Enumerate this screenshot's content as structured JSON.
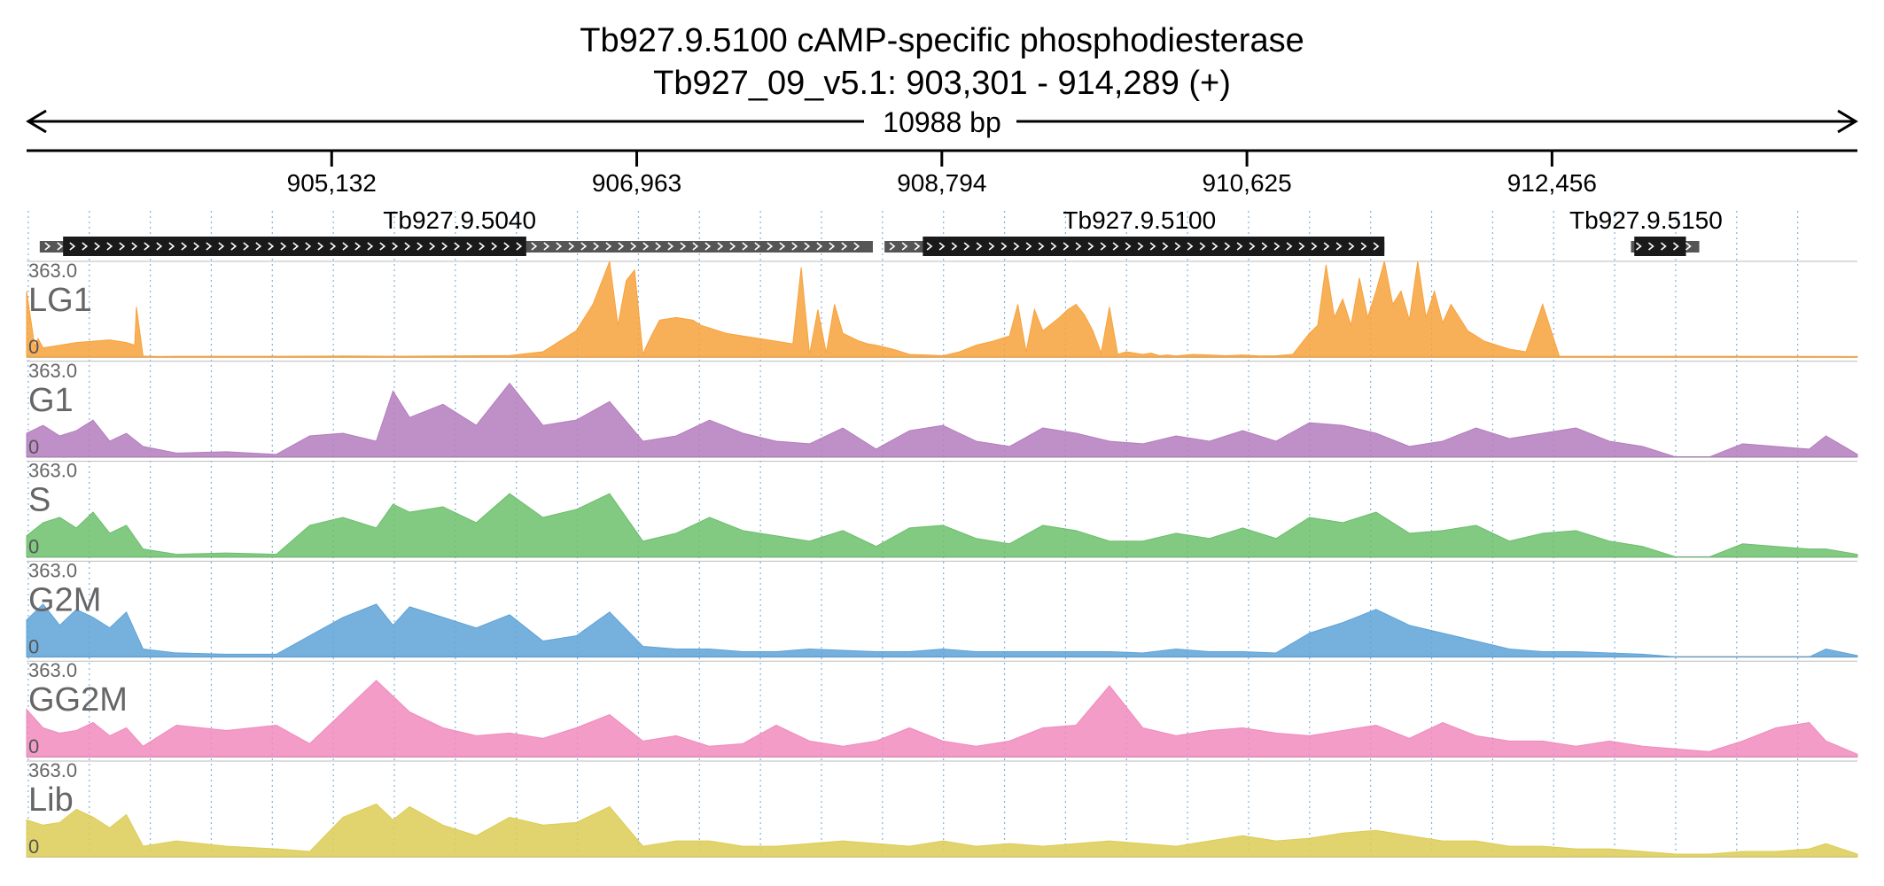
{
  "chart_data": {
    "type": "area",
    "title": "Tb927.9.5100  cAMP-specific phosphodiesterase",
    "subtitle": "Tb927_09_v5.1: 903,301 - 914,289 (+)",
    "span_label": "10988 bp",
    "xlim": [
      903301,
      914289
    ],
    "xticks": [
      905132,
      906963,
      908794,
      910625,
      912456
    ],
    "xtick_labels": [
      "905,132",
      "906,963",
      "908,794",
      "910,625",
      "912,456"
    ],
    "genes": [
      {
        "name": "Tb927.9.5040",
        "start": 903380,
        "end": 906300,
        "cds_start": 903520,
        "cds_end": 906300,
        "label_pos": 905900
      },
      {
        "name": "",
        "start": 906300,
        "end": 908380,
        "cds_start": 0,
        "cds_end": 0,
        "label_pos": 0
      },
      {
        "name": "Tb927.9.5100",
        "start": 908450,
        "end": 911450,
        "cds_start": 908680,
        "cds_end": 911450,
        "label_pos": 909980
      },
      {
        "name": "Tb927.9.5150",
        "start": 912930,
        "end": 913340,
        "cds_start": 912950,
        "cds_end": 913260,
        "label_pos": 913020
      }
    ],
    "ylim": [
      0,
      363.0
    ],
    "ymax_label": "363.0",
    "ymin_label": "0",
    "grid": true,
    "series": [
      {
        "name": "LG1",
        "color": "#f7a23b",
        "x": [
          903301,
          903350,
          903370,
          903400,
          903500,
          903600,
          903700,
          903800,
          903900,
          903950,
          903960,
          904000,
          904020,
          904050,
          904100,
          904200,
          904500,
          904800,
          905200,
          905500,
          905800,
          906000,
          906200,
          906400,
          906500,
          906600,
          906650,
          906700,
          906800,
          906850,
          906900,
          906950,
          907000,
          907020,
          907050,
          907100,
          907200,
          907300,
          907350,
          907400,
          907500,
          907600,
          907700,
          907800,
          907900,
          907950,
          908000,
          908050,
          908100,
          908150,
          908200,
          908300,
          908350,
          908400,
          908500,
          908550,
          908600,
          908700,
          908800,
          908900,
          909000,
          909100,
          909200,
          909250,
          909300,
          909350,
          909400,
          909500,
          909550,
          909600,
          909650,
          909700,
          909750,
          909800,
          909850,
          909900,
          909950,
          910000,
          910050,
          910100,
          910150,
          910200,
          910300,
          910400,
          910500,
          910600,
          910700,
          910800,
          910900,
          911000,
          911050,
          911100,
          911150,
          911200,
          911250,
          911300,
          911350,
          911400,
          911450,
          911500,
          911550,
          911600,
          911650,
          911700,
          911750,
          911800,
          911850,
          911900,
          911950,
          912000,
          912050,
          912100,
          912150,
          912200,
          912300,
          912400,
          912500,
          912600,
          912700,
          912800,
          913000,
          913500,
          914289
        ],
        "y": [
          250,
          40,
          70,
          35,
          45,
          55,
          60,
          65,
          55,
          45,
          190,
          4,
          3,
          3,
          2,
          3,
          3,
          3,
          4,
          3,
          4,
          5,
          6,
          20,
          60,
          100,
          150,
          200,
          380,
          120,
          290,
          330,
          10,
          40,
          80,
          140,
          150,
          140,
          120,
          110,
          90,
          80,
          70,
          60,
          50,
          340,
          10,
          180,
          15,
          200,
          90,
          60,
          50,
          45,
          30,
          20,
          10,
          8,
          5,
          20,
          45,
          60,
          80,
          200,
          20,
          180,
          100,
          150,
          180,
          200,
          160,
          100,
          15,
          190,
          10,
          20,
          15,
          10,
          15,
          5,
          8,
          4,
          10,
          8,
          5,
          8,
          4,
          5,
          10,
          90,
          120,
          350,
          150,
          220,
          120,
          300,
          150,
          250,
          370,
          200,
          250,
          140,
          370,
          150,
          250,
          130,
          200,
          150,
          100,
          80,
          60,
          50,
          40,
          30,
          20,
          200,
          3,
          3,
          3,
          3,
          3,
          3,
          2
        ]
      },
      {
        "name": "G1",
        "color": "#b47cbd",
        "x": [
          903301,
          903400,
          903500,
          903600,
          903700,
          903800,
          903900,
          904000,
          904200,
          904500,
          904800,
          905000,
          905200,
          905400,
          905500,
          905600,
          905800,
          906000,
          906200,
          906400,
          906600,
          906800,
          907000,
          907200,
          907400,
          907600,
          907800,
          908000,
          908200,
          908400,
          908600,
          908800,
          909000,
          909200,
          909400,
          909600,
          909800,
          910000,
          910200,
          910400,
          910600,
          910800,
          911000,
          911200,
          911400,
          911600,
          911800,
          912000,
          912200,
          912400,
          912600,
          912800,
          913000,
          913200,
          913400,
          913600,
          913800,
          914000,
          914100,
          914289
        ],
        "y": [
          90,
          120,
          80,
          100,
          140,
          60,
          90,
          40,
          15,
          20,
          10,
          80,
          90,
          60,
          250,
          150,
          200,
          120,
          280,
          120,
          140,
          210,
          60,
          80,
          140,
          90,
          60,
          50,
          110,
          30,
          100,
          120,
          60,
          40,
          110,
          90,
          60,
          50,
          80,
          60,
          100,
          60,
          130,
          120,
          90,
          40,
          60,
          110,
          70,
          90,
          110,
          60,
          40,
          0,
          0,
          50,
          40,
          30,
          80,
          10
        ]
      },
      {
        "name": "S",
        "color": "#6cbf6c",
        "x": [
          903301,
          903400,
          903500,
          903600,
          903700,
          903800,
          903900,
          904000,
          904200,
          904500,
          904800,
          905000,
          905200,
          905400,
          905500,
          905600,
          905800,
          906000,
          906200,
          906400,
          906600,
          906800,
          907000,
          907200,
          907400,
          907600,
          907800,
          908000,
          908200,
          908400,
          908600,
          908800,
          909000,
          909200,
          909400,
          909600,
          909800,
          910000,
          910200,
          910400,
          910600,
          910800,
          911000,
          911200,
          911400,
          911600,
          911800,
          912000,
          912200,
          912400,
          912600,
          912800,
          913000,
          913200,
          913400,
          913600,
          913800,
          914000,
          914100,
          914289
        ],
        "y": [
          80,
          130,
          150,
          110,
          170,
          90,
          120,
          30,
          10,
          15,
          10,
          120,
          150,
          110,
          200,
          170,
          190,
          130,
          240,
          150,
          180,
          240,
          60,
          90,
          150,
          100,
          80,
          60,
          100,
          40,
          110,
          120,
          70,
          50,
          120,
          100,
          60,
          60,
          90,
          70,
          110,
          70,
          150,
          130,
          170,
          90,
          100,
          120,
          60,
          90,
          100,
          60,
          40,
          0,
          0,
          50,
          40,
          30,
          30,
          10
        ]
      },
      {
        "name": "G2M",
        "color": "#5ea3d8",
        "x": [
          903301,
          903400,
          903500,
          903600,
          903700,
          903800,
          903900,
          904000,
          904200,
          904500,
          904800,
          905000,
          905200,
          905400,
          905500,
          905600,
          905800,
          906000,
          906200,
          906400,
          906600,
          906800,
          907000,
          907200,
          907400,
          907600,
          907800,
          908000,
          908200,
          908400,
          908600,
          908800,
          909000,
          909200,
          909400,
          909600,
          909800,
          910000,
          910200,
          910400,
          910600,
          910800,
          911000,
          911200,
          911400,
          911600,
          911800,
          912000,
          912200,
          912400,
          912600,
          912800,
          913000,
          913200,
          913400,
          913600,
          913800,
          914000,
          914100,
          914289
        ],
        "y": [
          140,
          200,
          120,
          180,
          150,
          110,
          170,
          30,
          15,
          10,
          10,
          80,
          150,
          200,
          120,
          190,
          150,
          110,
          160,
          60,
          80,
          170,
          40,
          30,
          30,
          20,
          20,
          30,
          25,
          20,
          20,
          30,
          20,
          20,
          20,
          20,
          20,
          15,
          30,
          20,
          20,
          15,
          90,
          130,
          180,
          120,
          90,
          60,
          30,
          20,
          20,
          15,
          10,
          0,
          0,
          0,
          0,
          0,
          30,
          5
        ]
      },
      {
        "name": "GG2M",
        "color": "#f08bbd",
        "x": [
          903301,
          903400,
          903500,
          903600,
          903700,
          903800,
          903900,
          904000,
          904200,
          904500,
          904800,
          905000,
          905200,
          905400,
          905500,
          905600,
          905800,
          906000,
          906200,
          906400,
          906600,
          906800,
          907000,
          907200,
          907400,
          907600,
          907800,
          908000,
          908200,
          908400,
          908600,
          908800,
          909000,
          909200,
          909400,
          909600,
          909800,
          910000,
          910200,
          910400,
          910600,
          910800,
          911000,
          911200,
          911400,
          911600,
          911800,
          912000,
          912200,
          912400,
          912600,
          912800,
          913000,
          913200,
          913400,
          913600,
          913800,
          914000,
          914100,
          914289
        ],
        "y": [
          180,
          110,
          90,
          100,
          130,
          80,
          110,
          40,
          120,
          100,
          120,
          50,
          170,
          290,
          230,
          170,
          110,
          80,
          90,
          70,
          110,
          160,
          60,
          80,
          40,
          50,
          120,
          60,
          40,
          60,
          110,
          60,
          40,
          60,
          110,
          120,
          270,
          110,
          80,
          100,
          110,
          90,
          80,
          100,
          120,
          70,
          130,
          80,
          60,
          60,
          40,
          60,
          40,
          30,
          20,
          60,
          110,
          130,
          60,
          10
        ]
      },
      {
        "name": "Lib",
        "color": "#dccc55",
        "x": [
          903301,
          903400,
          903500,
          903600,
          903700,
          903800,
          903900,
          904000,
          904200,
          904500,
          904800,
          905000,
          905200,
          905400,
          905500,
          905600,
          905800,
          906000,
          906200,
          906400,
          906600,
          906800,
          907000,
          907200,
          907400,
          907600,
          907800,
          908000,
          908200,
          908400,
          908600,
          908800,
          909000,
          909200,
          909400,
          909600,
          909800,
          910000,
          910200,
          910400,
          910600,
          910800,
          911000,
          911200,
          911400,
          911600,
          911800,
          912000,
          912200,
          912400,
          912600,
          912800,
          913000,
          913200,
          913400,
          913600,
          913800,
          914000,
          914100,
          914289
        ],
        "y": [
          140,
          120,
          130,
          180,
          150,
          110,
          160,
          40,
          60,
          40,
          30,
          20,
          150,
          200,
          140,
          190,
          120,
          80,
          150,
          120,
          130,
          190,
          40,
          60,
          60,
          40,
          40,
          50,
          60,
          50,
          40,
          60,
          40,
          50,
          40,
          50,
          60,
          50,
          40,
          60,
          80,
          60,
          70,
          90,
          100,
          80,
          60,
          60,
          40,
          40,
          30,
          30,
          20,
          10,
          10,
          20,
          20,
          30,
          50,
          10
        ]
      }
    ]
  }
}
